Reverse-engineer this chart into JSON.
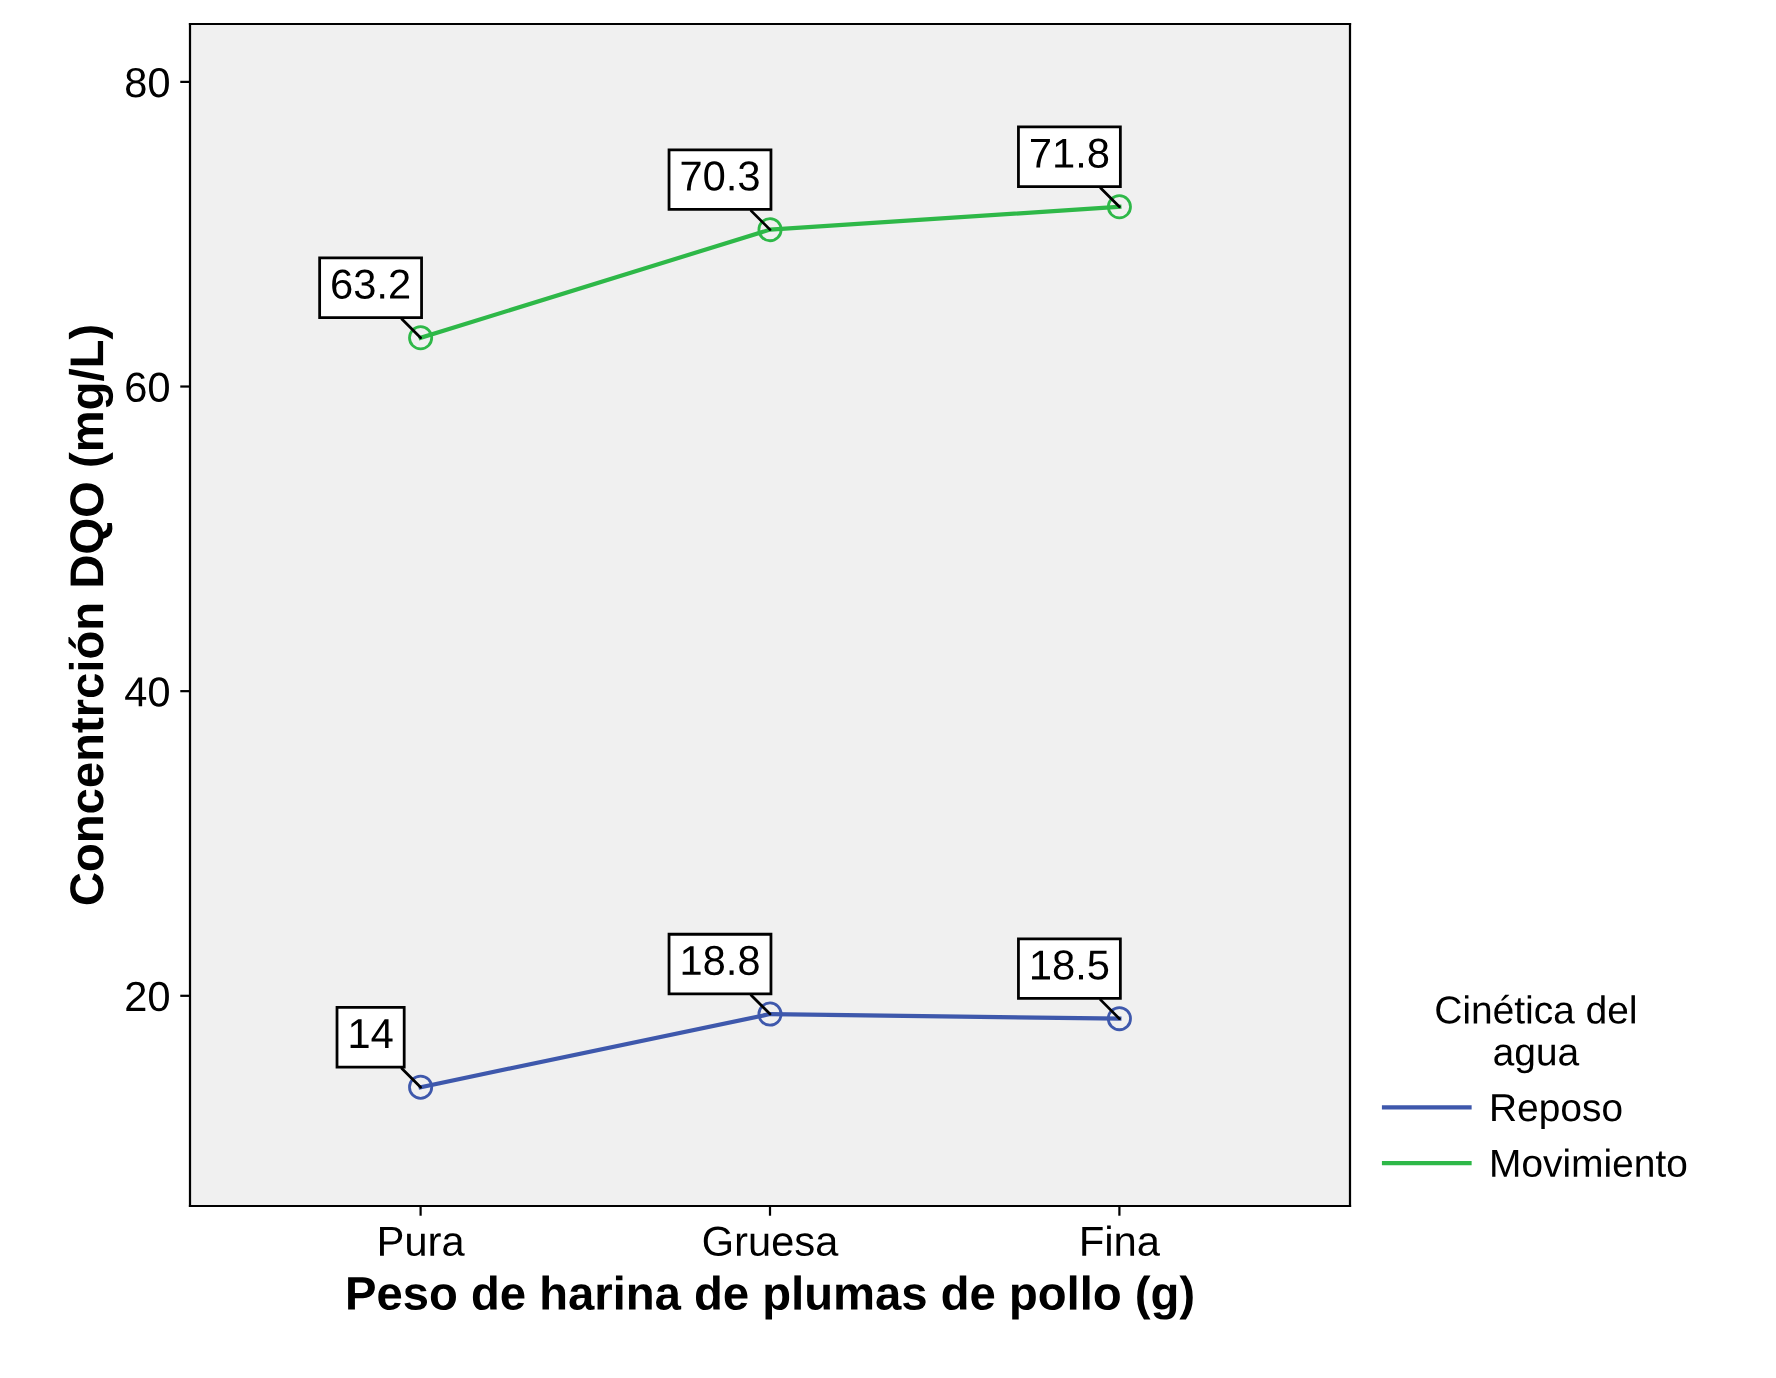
{
  "chart_data": {
    "type": "line",
    "xlabel": "Peso de harina de plumas de pollo (g)",
    "ylabel": "Concentrción DQO (mg/L)",
    "legend_title": "Cinética del\nagua",
    "categories": [
      "Pura",
      "Gruesa",
      "Fina"
    ],
    "series": [
      {
        "name": "Reposo",
        "color": "#3e58ac",
        "values": [
          14,
          18.8,
          18.5
        ]
      },
      {
        "name": "Movimiento",
        "color": "#2eb848",
        "values": [
          63.2,
          70.3,
          71.8
        ]
      }
    ],
    "ylim": [
      6.2,
      83.8
    ],
    "yticks": [
      20,
      40,
      60,
      80
    ],
    "grid": false,
    "legend": "right",
    "marker": "circle",
    "line_style": "solid",
    "data_labels": true
  }
}
